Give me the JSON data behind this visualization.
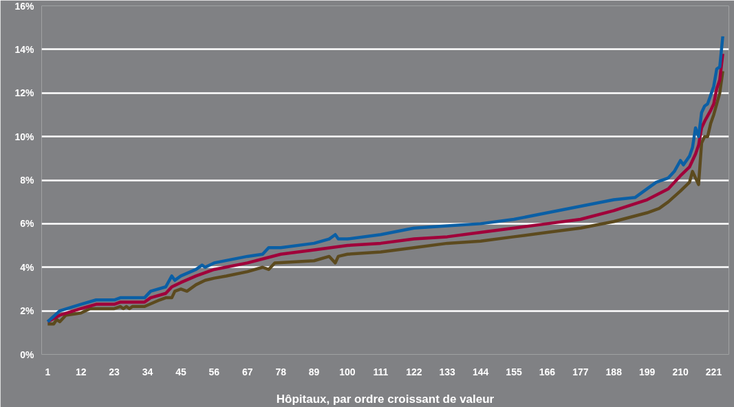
{
  "chart_data": {
    "type": "line",
    "xlabel": "Hôpitaux, par ordre croissant de valeur",
    "xlim": [
      -1,
      226
    ],
    "ylim": [
      0,
      16
    ],
    "xticks": [
      1,
      12,
      23,
      34,
      45,
      56,
      67,
      78,
      89,
      100,
      111,
      122,
      133,
      144,
      155,
      166,
      177,
      188,
      199,
      210,
      221
    ],
    "yticks": [
      {
        "value": 0,
        "label": "0%"
      },
      {
        "value": 2,
        "label": "2%"
      },
      {
        "value": 4,
        "label": "4%"
      },
      {
        "value": 6,
        "label": "6%"
      },
      {
        "value": 8,
        "label": "8%"
      },
      {
        "value": 10,
        "label": "10%"
      },
      {
        "value": 12,
        "label": "12%"
      },
      {
        "value": 14,
        "label": "14%"
      },
      {
        "value": 16,
        "label": "16%"
      }
    ],
    "grid": "y",
    "marker": "none",
    "line_style": "solid",
    "series": [
      {
        "color": "#5c4a1e",
        "x": [
          1,
          3,
          4,
          5,
          7,
          12,
          15,
          23,
          25,
          26,
          27,
          28,
          29,
          33,
          38,
          40,
          42,
          43,
          45,
          47,
          50,
          53,
          56,
          60,
          67,
          72,
          74,
          76,
          89,
          94,
          96,
          97,
          100,
          111,
          122,
          133,
          144,
          155,
          166,
          177,
          188,
          199,
          203,
          206,
          210,
          213,
          214,
          216,
          217,
          218,
          219,
          220,
          221,
          222,
          223,
          224
        ],
        "values": [
          1.4,
          1.4,
          1.6,
          1.5,
          1.8,
          1.9,
          2.1,
          2.1,
          2.2,
          2.1,
          2.2,
          2.1,
          2.2,
          2.2,
          2.5,
          2.6,
          2.6,
          2.9,
          3.0,
          2.9,
          3.2,
          3.4,
          3.5,
          3.6,
          3.8,
          4.0,
          3.9,
          4.2,
          4.3,
          4.5,
          4.2,
          4.5,
          4.6,
          4.7,
          4.9,
          5.1,
          5.2,
          5.4,
          5.6,
          5.8,
          6.1,
          6.5,
          6.7,
          7.0,
          7.5,
          7.9,
          8.4,
          7.8,
          9.7,
          10.0,
          10.0,
          10.6,
          11.0,
          11.5,
          12.0,
          13.0
        ]
      },
      {
        "color": "#a0003a",
        "x": [
          1,
          5,
          12,
          17,
          23,
          25,
          33,
          35,
          40,
          42,
          45,
          50,
          56,
          67,
          78,
          89,
          100,
          111,
          122,
          133,
          144,
          155,
          166,
          177,
          188,
          199,
          206,
          210,
          213,
          215,
          216,
          217,
          218,
          220,
          221,
          222,
          223,
          224
        ],
        "values": [
          1.5,
          1.8,
          2.1,
          2.3,
          2.3,
          2.4,
          2.4,
          2.6,
          2.8,
          3.1,
          3.3,
          3.6,
          3.9,
          4.2,
          4.6,
          4.8,
          5.0,
          5.1,
          5.3,
          5.4,
          5.6,
          5.8,
          6.0,
          6.2,
          6.6,
          7.1,
          7.6,
          8.2,
          8.6,
          9.2,
          9.6,
          10.4,
          10.7,
          11.2,
          11.5,
          12.2,
          12.6,
          13.8
        ]
      },
      {
        "color": "#0a5fa5",
        "x": [
          1,
          5,
          12,
          17,
          23,
          25,
          33,
          35,
          40,
          42,
          43,
          45,
          50,
          52,
          53,
          56,
          67,
          72,
          74,
          78,
          89,
          94,
          96,
          97,
          100,
          111,
          122,
          133,
          144,
          155,
          166,
          177,
          188,
          195,
          199,
          202,
          206,
          208,
          210,
          211,
          213,
          214,
          215,
          216,
          217,
          218,
          219,
          220,
          221,
          222,
          223,
          224
        ],
        "values": [
          1.5,
          2.0,
          2.3,
          2.5,
          2.5,
          2.6,
          2.6,
          2.9,
          3.1,
          3.6,
          3.4,
          3.6,
          3.9,
          4.1,
          4.0,
          4.2,
          4.5,
          4.6,
          4.9,
          4.9,
          5.1,
          5.3,
          5.5,
          5.3,
          5.3,
          5.5,
          5.8,
          5.9,
          6.0,
          6.2,
          6.5,
          6.8,
          7.1,
          7.2,
          7.6,
          7.9,
          8.1,
          8.4,
          8.9,
          8.7,
          9.1,
          9.5,
          10.4,
          10.0,
          11.1,
          11.4,
          11.5,
          11.9,
          12.3,
          13.1,
          13.2,
          14.6
        ]
      }
    ]
  }
}
